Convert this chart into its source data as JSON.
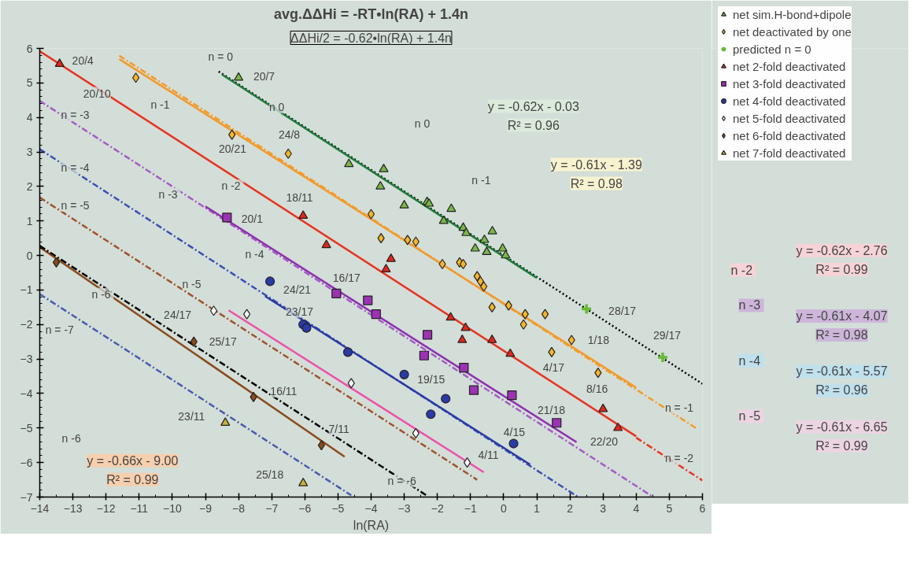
{
  "chart_data": {
    "type": "scatter",
    "title": "avg.ΔΔHi = -RT•ln(RA) + 1.4n",
    "subtitle": "ΔΔHi/2 = -0.62•ln(RA) + 1.4n",
    "xlabel": "ln(RA)",
    "xlim": [
      -14,
      6
    ],
    "ylim": [
      -7,
      6
    ],
    "xticks": [
      -14,
      -13,
      -12,
      -11,
      -10,
      -9,
      -8,
      -7,
      -6,
      -5,
      -4,
      -3,
      -2,
      -1,
      0,
      1,
      2,
      3,
      4,
      5,
      6
    ],
    "yticks": [
      -7,
      -6,
      -5,
      -4,
      -3,
      -2,
      -1,
      0,
      1,
      2,
      3,
      4,
      5,
      6
    ],
    "grid": false,
    "legend": "top right",
    "series": [
      {
        "name": "net sim.H-bond+dipole",
        "marker": "triangle",
        "color": "#7ab648",
        "x": [
          -8.0,
          -4.67,
          -3.62,
          -3.72,
          -3.0,
          -2.31,
          -2.25,
          -1.58,
          -1.81,
          -1.22,
          -1.13,
          -0.34,
          -0.58,
          -0.86,
          -0.51,
          -0.03,
          0.06
        ],
        "values": [
          5.15,
          2.65,
          2.5,
          2.0,
          1.45,
          1.55,
          1.5,
          1.35,
          1.0,
          0.8,
          0.65,
          0.7,
          0.45,
          0.2,
          0.1,
          0.2,
          0.0
        ]
      },
      {
        "name": "net deactivated by one",
        "marker": "diamond",
        "color": "#f7b52a",
        "x": [
          -11.1,
          -8.2,
          -6.5,
          -4.0,
          -3.7,
          -2.9,
          -2.65,
          -1.85,
          -1.33,
          -1.22,
          -0.8,
          -0.7,
          -0.6,
          -0.35,
          0.15,
          0.65,
          1.25,
          0.6,
          2.05,
          1.45,
          2.85
        ],
        "values": [
          5.15,
          3.5,
          2.95,
          1.2,
          0.5,
          0.45,
          0.4,
          -0.25,
          -0.2,
          -0.25,
          -0.6,
          -0.75,
          -0.9,
          -1.5,
          -1.45,
          -1.7,
          -1.7,
          -2.0,
          -2.45,
          -2.8,
          -3.4
        ]
      },
      {
        "name": "predicted n = 0",
        "marker": "cross",
        "color": "#66bb33",
        "x": [
          2.5,
          4.8
        ],
        "values": [
          -1.55,
          -2.95
        ]
      },
      {
        "name": "net 2-fold deactivated",
        "marker": "triangle",
        "color": "#e3261c",
        "x": [
          -13.4,
          -6.05,
          -5.35,
          -3.4,
          -3.55,
          -1.6,
          -1.15,
          -1.25,
          -0.35,
          0.2,
          3.0,
          3.45
        ],
        "values": [
          5.55,
          1.15,
          0.3,
          -0.1,
          -0.4,
          -1.8,
          -2.1,
          -2.45,
          -2.45,
          -2.85,
          -4.45,
          -5.0
        ]
      },
      {
        "name": "net 3-fold deactivated",
        "marker": "square",
        "color": "#9b33b3",
        "x": [
          -8.35,
          -5.05,
          -4.1,
          -3.85,
          -2.3,
          -2.4,
          -1.2,
          -0.9,
          0.25,
          1.6
        ],
        "values": [
          1.1,
          -1.1,
          -1.3,
          -1.7,
          -2.3,
          -2.9,
          -3.25,
          -3.9,
          -4.05,
          -4.85
        ]
      },
      {
        "name": "net 4-fold deactivated",
        "marker": "circle",
        "color": "#2a3aa6",
        "x": [
          -7.05,
          -6.05,
          -5.95,
          -4.7,
          -3.0,
          -1.75,
          -2.2,
          0.3
        ],
        "values": [
          -0.75,
          -2.0,
          -2.1,
          -2.8,
          -3.45,
          -4.15,
          -4.6,
          -5.45
        ]
      },
      {
        "name": "net 5-fold deactivated",
        "marker": "diamond",
        "color": "#ffffff",
        "x": [
          -8.75,
          -7.75,
          -4.6,
          -2.65,
          -1.1
        ],
        "values": [
          -1.6,
          -1.7,
          -3.7,
          -5.15,
          -6.0
        ]
      },
      {
        "name": "net 6-fold deactivated",
        "marker": "diamond",
        "color": "#8b4a1c",
        "x": [
          -13.5,
          -9.35,
          -7.55,
          -5.5
        ],
        "values": [
          -0.2,
          -2.5,
          -4.1,
          -5.5
        ]
      },
      {
        "name": "net 7-fold deactivated",
        "marker": "triangle",
        "color": "#c9b13a",
        "x": [
          -8.4,
          -6.05
        ],
        "values": [
          -4.85,
          -6.6
        ]
      },
      {
        "type": "line",
        "line_style": "dotted",
        "color": "#000000",
        "x": [
          -8.6,
          6
        ],
        "values": [
          5.33,
          -3.72
        ]
      },
      {
        "type": "line",
        "line_style": "solid",
        "color": "#1e7a3a",
        "x": [
          -8.5,
          1.0
        ],
        "values": [
          5.24,
          -0.65
        ]
      },
      {
        "type": "line",
        "line_style": "dashed",
        "color": "#f39a2b",
        "x": [
          -11.6,
          5.8
        ],
        "values": [
          5.79,
          -5.0
        ]
      },
      {
        "type": "line",
        "line_style": "solid",
        "color": "#f39a2b",
        "x": [
          -11.6,
          4.0
        ],
        "values": [
          5.69,
          -3.83
        ]
      },
      {
        "type": "line",
        "line_style": "solid",
        "color": "#e8331f",
        "x": [
          -14,
          4.0
        ],
        "values": [
          5.92,
          -5.24
        ]
      },
      {
        "type": "line",
        "line_style": "dashed",
        "color": "#e8331f",
        "x": [
          4.0,
          6
        ],
        "values": [
          -5.28,
          -6.52
        ]
      },
      {
        "type": "line",
        "line_style": "dashed",
        "color": "#a45cc4",
        "x": [
          -14,
          4.5
        ],
        "values": [
          4.48,
          -6.99
        ]
      },
      {
        "type": "line",
        "line_style": "solid",
        "color": "#8e2fb0",
        "x": [
          -9.0,
          2.2
        ],
        "values": [
          1.42,
          -5.41
        ]
      },
      {
        "type": "line",
        "line_style": "dashed",
        "color": "#3a4fb5",
        "x": [
          -14,
          2.25
        ],
        "values": [
          3.08,
          -7.0
        ]
      },
      {
        "type": "line",
        "line_style": "solid",
        "color": "#2a3aa6",
        "x": [
          -7.2,
          0.8
        ],
        "values": [
          -1.18,
          -6.06
        ]
      },
      {
        "type": "line",
        "line_style": "solid",
        "color": "#ee4fa8",
        "x": [
          -8.3,
          -0.6
        ],
        "values": [
          -1.59,
          -6.28
        ]
      },
      {
        "type": "line",
        "line_style": "dashed",
        "color": "#a0522d",
        "x": [
          -14,
          -0.8
        ],
        "values": [
          1.68,
          -6.5
        ]
      },
      {
        "type": "line",
        "line_style": "solid",
        "color": "#8b4a1c",
        "x": [
          -14,
          -4.8
        ],
        "values": [
          0.24,
          -5.83
        ]
      },
      {
        "type": "line",
        "line_style": "dashed",
        "color": "#000000",
        "x": [
          -14,
          -2.3
        ],
        "values": [
          0.28,
          -6.97
        ]
      },
      {
        "type": "line",
        "line_style": "dashed",
        "color": "#4a5ab0",
        "x": [
          -14,
          -4.6
        ],
        "values": [
          -1.12,
          -6.95
        ]
      }
    ],
    "annotations": [
      {
        "text": "20/4",
        "x": -12.7,
        "y": 5.65
      },
      {
        "text": "20/10",
        "x": -12.27,
        "y": 4.7
      },
      {
        "text": "20/7",
        "x": -7.23,
        "y": 5.2
      },
      {
        "text": "20/21",
        "x": -8.18,
        "y": 3.1
      },
      {
        "text": "24/8",
        "x": -6.47,
        "y": 3.5
      },
      {
        "text": "18/11",
        "x": -6.16,
        "y": 1.67
      },
      {
        "text": "20/1",
        "x": -7.59,
        "y": 1.07
      },
      {
        "text": "16/17",
        "x": -4.74,
        "y": -0.64
      },
      {
        "text": "24/21",
        "x": -6.23,
        "y": -0.99
      },
      {
        "text": "23/17",
        "x": -6.16,
        "y": -1.62
      },
      {
        "text": "24/17",
        "x": -9.84,
        "y": -1.71
      },
      {
        "text": "25/17",
        "x": -8.47,
        "y": -2.5
      },
      {
        "text": "16/11",
        "x": -6.64,
        "y": -3.93
      },
      {
        "text": "23/11",
        "x": -9.42,
        "y": -4.67
      },
      {
        "text": "7/11",
        "x": -4.97,
        "y": -5.02
      },
      {
        "text": "25/18",
        "x": -7.06,
        "y": -6.34
      },
      {
        "text": "19/15",
        "x": -2.19,
        "y": -3.6
      },
      {
        "text": "4/15",
        "x": 0.32,
        "y": -5.11
      },
      {
        "text": "4/11",
        "x": -0.46,
        "y": -5.79
      },
      {
        "text": "21/18",
        "x": 1.44,
        "y": -4.47
      },
      {
        "text": "22/20",
        "x": 3.03,
        "y": -5.39
      },
      {
        "text": "4/17",
        "x": 1.51,
        "y": -3.25
      },
      {
        "text": "8/16",
        "x": 2.82,
        "y": -3.86
      },
      {
        "text": "1/18",
        "x": 2.86,
        "y": -2.46
      },
      {
        "text": "28/17",
        "x": 3.58,
        "y": -1.6
      },
      {
        "text": "29/17",
        "x": 4.93,
        "y": -2.32
      },
      {
        "text": "n = 0",
        "x": -8.54,
        "y": 5.75
      },
      {
        "text": "n = -3",
        "x": -12.93,
        "y": 4.07
      },
      {
        "text": "n = -4",
        "x": -12.93,
        "y": 2.54
      },
      {
        "text": "n = -5",
        "x": -12.93,
        "y": 1.45
      },
      {
        "text": "n = -7",
        "x": -13.4,
        "y": -2.15
      },
      {
        "text": "n = -6",
        "x": -3.07,
        "y": -6.54
      },
      {
        "text": "n = -1",
        "x": 5.3,
        "y": -4.41
      },
      {
        "text": "n = -2",
        "x": 5.3,
        "y": -5.88
      },
      {
        "text": "n  -1",
        "x": -10.32,
        "y": 4.36
      },
      {
        "text": "n  0",
        "x": -6.8,
        "y": 4.3
      },
      {
        "text": "n  -3",
        "x": -10.08,
        "y": 1.78
      },
      {
        "text": "n  -2",
        "x": -8.18,
        "y": 2.02
      },
      {
        "text": "n  -4",
        "x": -7.47,
        "y": 0.04
      },
      {
        "text": "n  -5",
        "x": -9.37,
        "y": -0.83
      },
      {
        "text": "n  -6",
        "x": -12.1,
        "y": -1.12
      },
      {
        "text": "n  0",
        "x": -2.41,
        "y": 3.82
      },
      {
        "text": "n  -1",
        "x": -0.63,
        "y": 2.17
      },
      {
        "text": "n  -6",
        "x": -13.0,
        "y": -5.3
      },
      "y = -0.62x - 0.03\nR² = 0.96",
      "y = -0.61x - 1.39\nR² = 0.98",
      "y = -0.66x - 9.00\nR² = 0.99",
      "n  -2",
      "y = -0.62x - 2.76\nR² = 0.99",
      "n  -3",
      "y = -0.61x - 4.07\nR² = 0.98",
      "n  -4",
      "y = -0.61x - 5.57\nR² = 0.96",
      "n  -5",
      "y = -0.61x - 6.65\nR² = 0.99"
    ]
  }
}
